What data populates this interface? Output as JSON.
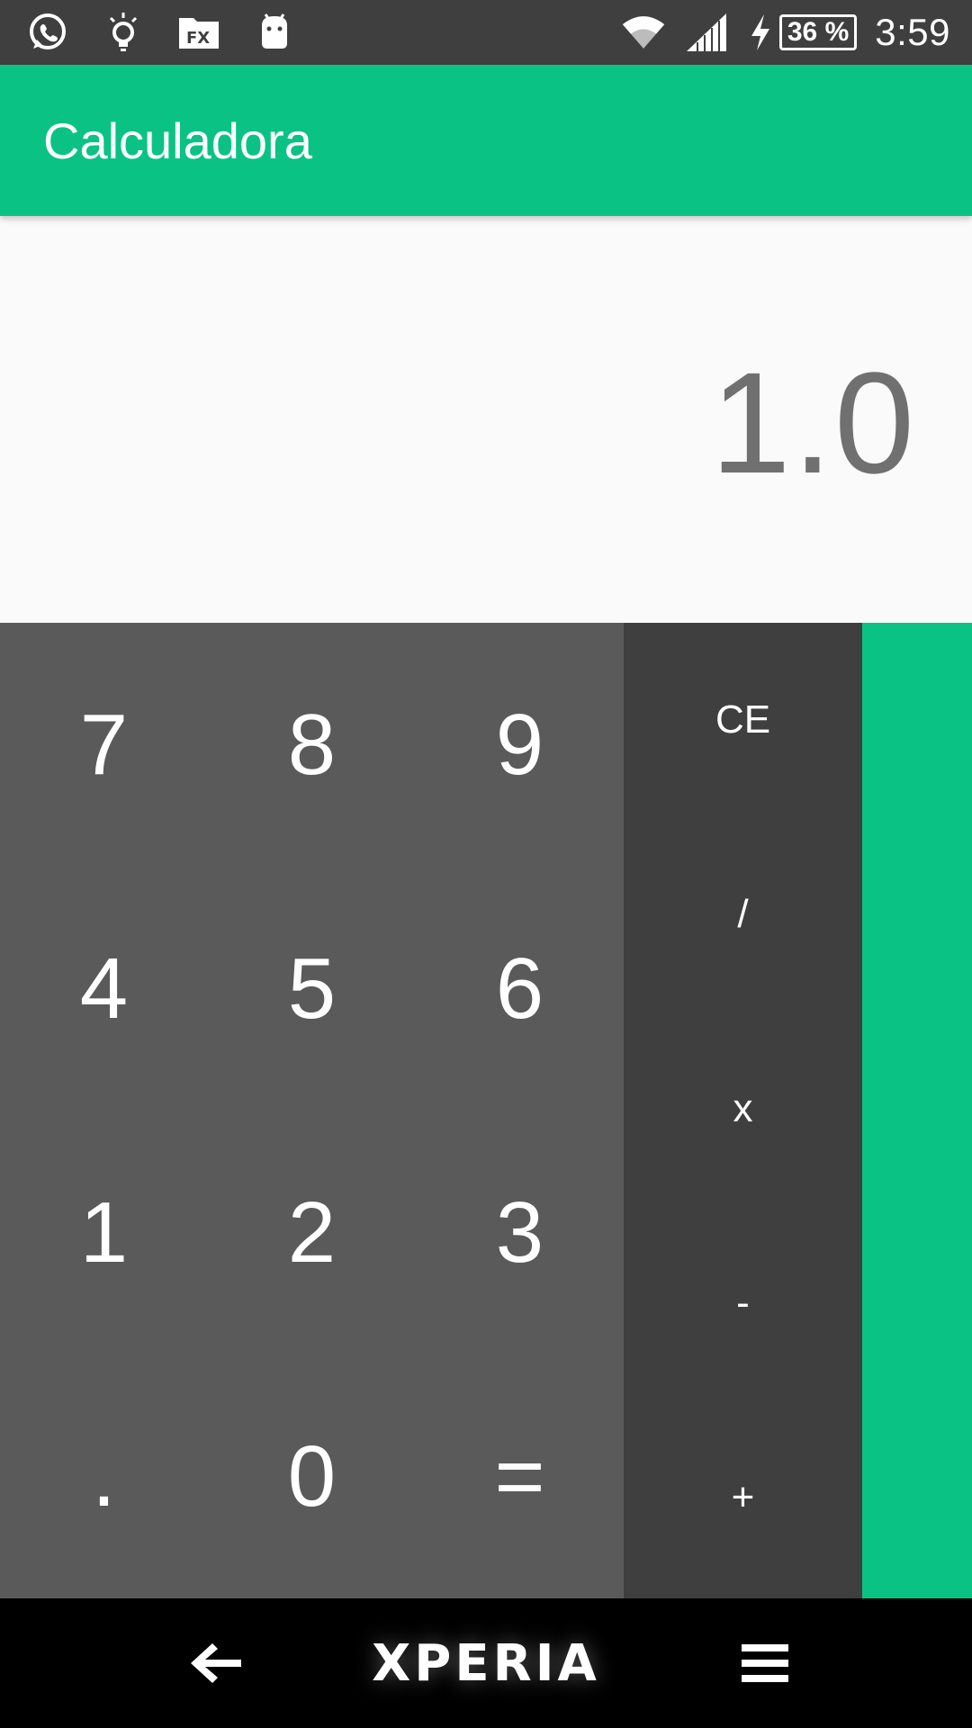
{
  "status_bar": {
    "left_icons": [
      "whatsapp-icon",
      "lightbulb-icon",
      "file-manager-icon",
      "android-robot-icon"
    ],
    "right_icons": [
      "wifi-icon",
      "cell-signal-icon",
      "charging-icon"
    ],
    "battery_percent": "36 %",
    "time": "3:59"
  },
  "app_bar": {
    "title": "Calculadora"
  },
  "display": {
    "value": "1.0"
  },
  "keypad": {
    "rows": [
      [
        "7",
        "8",
        "9"
      ],
      [
        "4",
        "5",
        "6"
      ],
      [
        "1",
        "2",
        "3"
      ],
      [
        ".",
        "0",
        "="
      ]
    ]
  },
  "operators": [
    "CE",
    "/",
    "x",
    "-",
    "+"
  ],
  "nav_bar": {
    "home_label": "XPERIA",
    "icons": [
      "back-arrow-icon",
      "menu-icon"
    ]
  },
  "colors": {
    "accent": "#0bc285",
    "status_bar": "#3f3f3f",
    "keypad": "#5a5a5a",
    "operators": "#3f3f3f",
    "display_text": "#707070",
    "nav_bar": "#000000"
  }
}
